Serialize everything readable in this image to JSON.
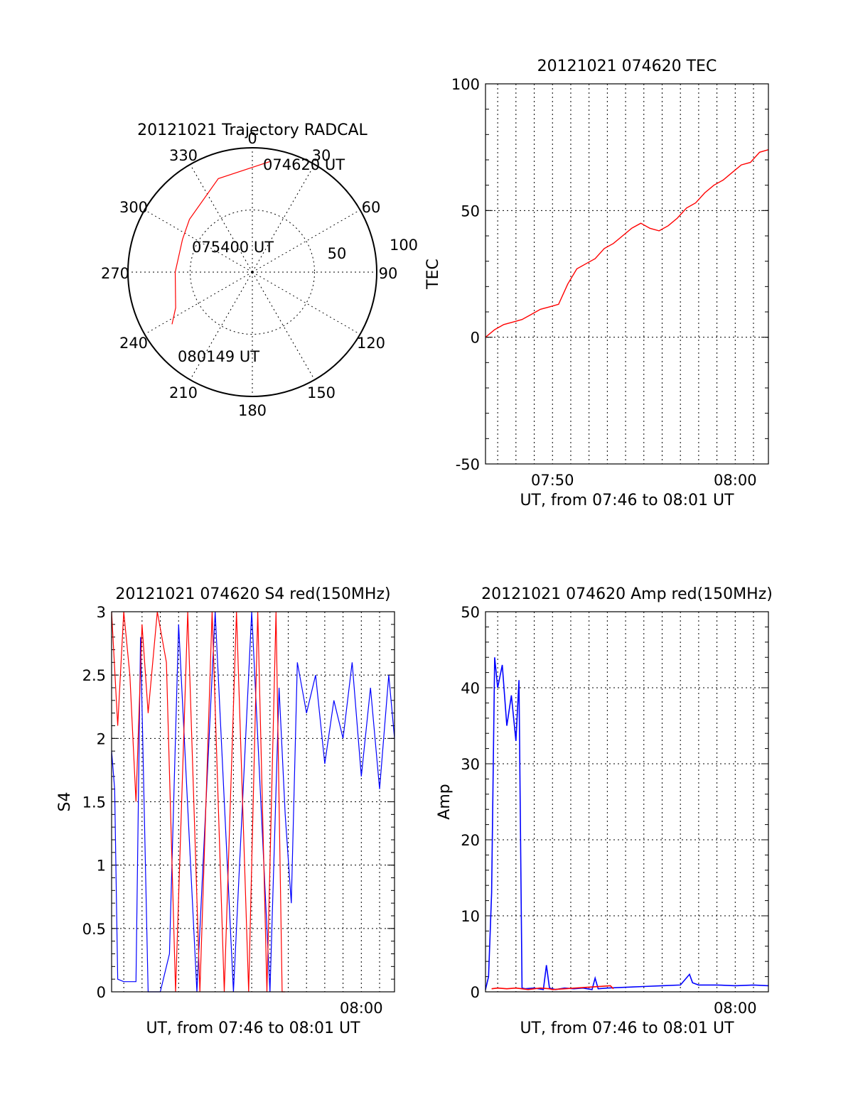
{
  "chart_data": [
    {
      "type": "polar",
      "title": "20121021 Trajectory RADCAL",
      "azimuth_labels": [
        "0",
        "30",
        "60",
        "90",
        "120",
        "150",
        "180",
        "210",
        "240",
        "270",
        "300",
        "330"
      ],
      "radius_labels": [
        "50",
        "100"
      ],
      "radius_range": [
        0,
        100
      ],
      "grid": true,
      "trajectory_color": "#ff0000",
      "trajectory": [
        {
          "az": 9,
          "r": 90
        },
        {
          "az": 340,
          "r": 80
        },
        {
          "az": 310,
          "r": 66
        },
        {
          "az": 295,
          "r": 62
        },
        {
          "az": 270,
          "r": 62
        },
        {
          "az": 245,
          "r": 68
        },
        {
          "az": 237,
          "r": 77
        }
      ],
      "annotations": [
        {
          "text": "074620 UT",
          "az": 9,
          "r": 90
        },
        {
          "text": "075400 UT",
          "az": 295,
          "r": 62
        },
        {
          "text": "080149 UT",
          "az": 237,
          "r": 77
        }
      ]
    },
    {
      "type": "line",
      "title": "20121021 074620 TEC",
      "xlabel": "UT, from 07:46 to 08:01 UT",
      "ylabel": "TEC",
      "xlim": [
        "07:46:20",
        "08:01:49"
      ],
      "ylim": [
        -50,
        100
      ],
      "yticks": [
        "100",
        "50",
        "0",
        "-50"
      ],
      "xticks": [
        "07:50",
        "08:00"
      ],
      "grid": true,
      "series": [
        {
          "color": "#ff0000",
          "x": [
            "07:46:20",
            "07:46:50",
            "07:47:20",
            "07:47:50",
            "07:48:20",
            "07:48:50",
            "07:49:20",
            "07:49:50",
            "07:50:20",
            "07:50:50",
            "07:51:20",
            "07:51:50",
            "07:52:20",
            "07:52:50",
            "07:53:20",
            "07:53:50",
            "07:54:20",
            "07:54:50",
            "07:55:20",
            "07:55:50",
            "07:56:20",
            "07:56:50",
            "07:57:20",
            "07:57:50",
            "07:58:20",
            "07:58:50",
            "07:59:20",
            "07:59:50",
            "08:00:20",
            "08:00:50",
            "08:01:20",
            "08:01:49"
          ],
          "values": [
            0,
            3,
            5,
            6,
            7,
            9,
            11,
            12,
            13,
            21,
            27,
            29,
            31,
            35,
            37,
            40,
            43,
            45,
            43,
            42,
            44,
            47,
            51,
            53,
            57,
            60,
            62,
            65,
            68,
            69,
            73,
            74
          ]
        }
      ]
    },
    {
      "type": "line",
      "title": "20121021 074620 S4 red(150MHz)",
      "xlabel": "UT, from 07:46 to 08:01 UT",
      "ylabel": "S4",
      "xlim": [
        "07:46:20",
        "08:01:49"
      ],
      "ylim": [
        0,
        3
      ],
      "yticks": [
        "3",
        "2.5",
        "2",
        "1.5",
        "1",
        "0.5",
        "0"
      ],
      "xticks": [
        "08:00"
      ],
      "grid": true,
      "series": [
        {
          "color": "#0000ff",
          "x": [
            "07:46:20",
            "07:46:30",
            "07:46:40",
            "07:47:00",
            "07:47:20",
            "07:47:40",
            "07:47:55",
            "07:48:20",
            "07:49:00",
            "07:49:30",
            "07:50:00",
            "07:51:00",
            "07:52:00",
            "07:53:00",
            "07:54:00",
            "07:55:00",
            "07:55:30",
            "07:55:50",
            "07:56:10",
            "07:56:30",
            "07:57:00",
            "07:57:30",
            "07:58:00",
            "07:58:30",
            "07:59:00",
            "07:59:30",
            "08:00:00",
            "08:00:30",
            "08:01:00",
            "08:01:30",
            "08:01:49"
          ],
          "values": [
            1.9,
            1.6,
            0.1,
            0.08,
            0.08,
            0.08,
            2.8,
            0.0,
            0.0,
            0.3,
            2.9,
            0.0,
            3.0,
            0.0,
            3.0,
            0.0,
            2.4,
            1.4,
            0.7,
            2.6,
            2.2,
            2.5,
            1.8,
            2.3,
            2.0,
            2.6,
            1.7,
            2.4,
            1.6,
            2.5,
            2.0
          ]
        },
        {
          "color": "#ff0000",
          "x": [
            "07:46:20",
            "07:46:40",
            "07:47:00",
            "07:47:20",
            "07:47:40",
            "07:48:00",
            "07:48:20",
            "07:48:50",
            "07:49:20",
            "07:49:50",
            "07:50:30",
            "07:51:10",
            "07:51:50",
            "07:52:30",
            "07:53:10",
            "07:53:50",
            "07:54:20",
            "07:54:50",
            "07:55:20",
            "07:55:40",
            "07:55:50"
          ],
          "values": [
            3.0,
            2.1,
            3.0,
            2.5,
            1.5,
            2.9,
            2.2,
            3.0,
            2.6,
            0.0,
            3.0,
            0.0,
            3.0,
            0.0,
            3.0,
            0.0,
            3.0,
            0.0,
            3.0,
            0.0,
            0.0
          ]
        }
      ]
    },
    {
      "type": "line",
      "title": "20121021 074620 Amp red(150MHz)",
      "xlabel": "UT, from 07:46 to 08:01 UT",
      "ylabel": "Amp",
      "xlim": [
        "07:46:20",
        "08:01:49"
      ],
      "ylim": [
        0,
        50
      ],
      "yticks": [
        "50",
        "40",
        "30",
        "20",
        "10",
        "0"
      ],
      "xticks": [
        "08:00"
      ],
      "grid": true,
      "series": [
        {
          "color": "#0000ff",
          "x": [
            "07:46:20",
            "07:46:30",
            "07:46:40",
            "07:46:50",
            "07:47:00",
            "07:47:15",
            "07:47:30",
            "07:47:45",
            "07:48:00",
            "07:48:10",
            "07:48:20",
            "07:48:30",
            "07:49:00",
            "07:49:30",
            "07:49:40",
            "07:49:50",
            "07:50:10",
            "07:50:40",
            "07:51:10",
            "07:51:40",
            "07:52:10",
            "07:52:20",
            "07:52:30",
            "07:53:00",
            "07:54:00",
            "07:55:00",
            "07:56:00",
            "07:57:00",
            "07:57:30",
            "07:57:40",
            "07:58:00",
            "07:59:00",
            "08:00:00",
            "08:01:00",
            "08:01:49"
          ],
          "values": [
            0.3,
            2.0,
            13.0,
            44.0,
            40.0,
            43.0,
            35.0,
            39.0,
            33.0,
            41.0,
            0.5,
            0.4,
            0.5,
            0.3,
            3.5,
            0.5,
            0.3,
            0.5,
            0.4,
            0.5,
            0.3,
            1.8,
            0.4,
            0.5,
            0.6,
            0.7,
            0.8,
            0.9,
            2.3,
            1.2,
            0.9,
            0.9,
            0.8,
            0.9,
            0.8
          ]
        },
        {
          "color": "#ff0000",
          "x": [
            "07:46:40",
            "07:47:00",
            "07:47:30",
            "07:48:00",
            "07:48:20",
            "07:48:40",
            "07:49:00",
            "07:49:20",
            "07:49:50",
            "07:50:00",
            "07:53:10",
            "07:53:20"
          ],
          "values": [
            0.4,
            0.5,
            0.4,
            0.5,
            0.4,
            0.3,
            0.4,
            0.5,
            0.4,
            0.3,
            0.8,
            0.4
          ]
        }
      ]
    }
  ]
}
